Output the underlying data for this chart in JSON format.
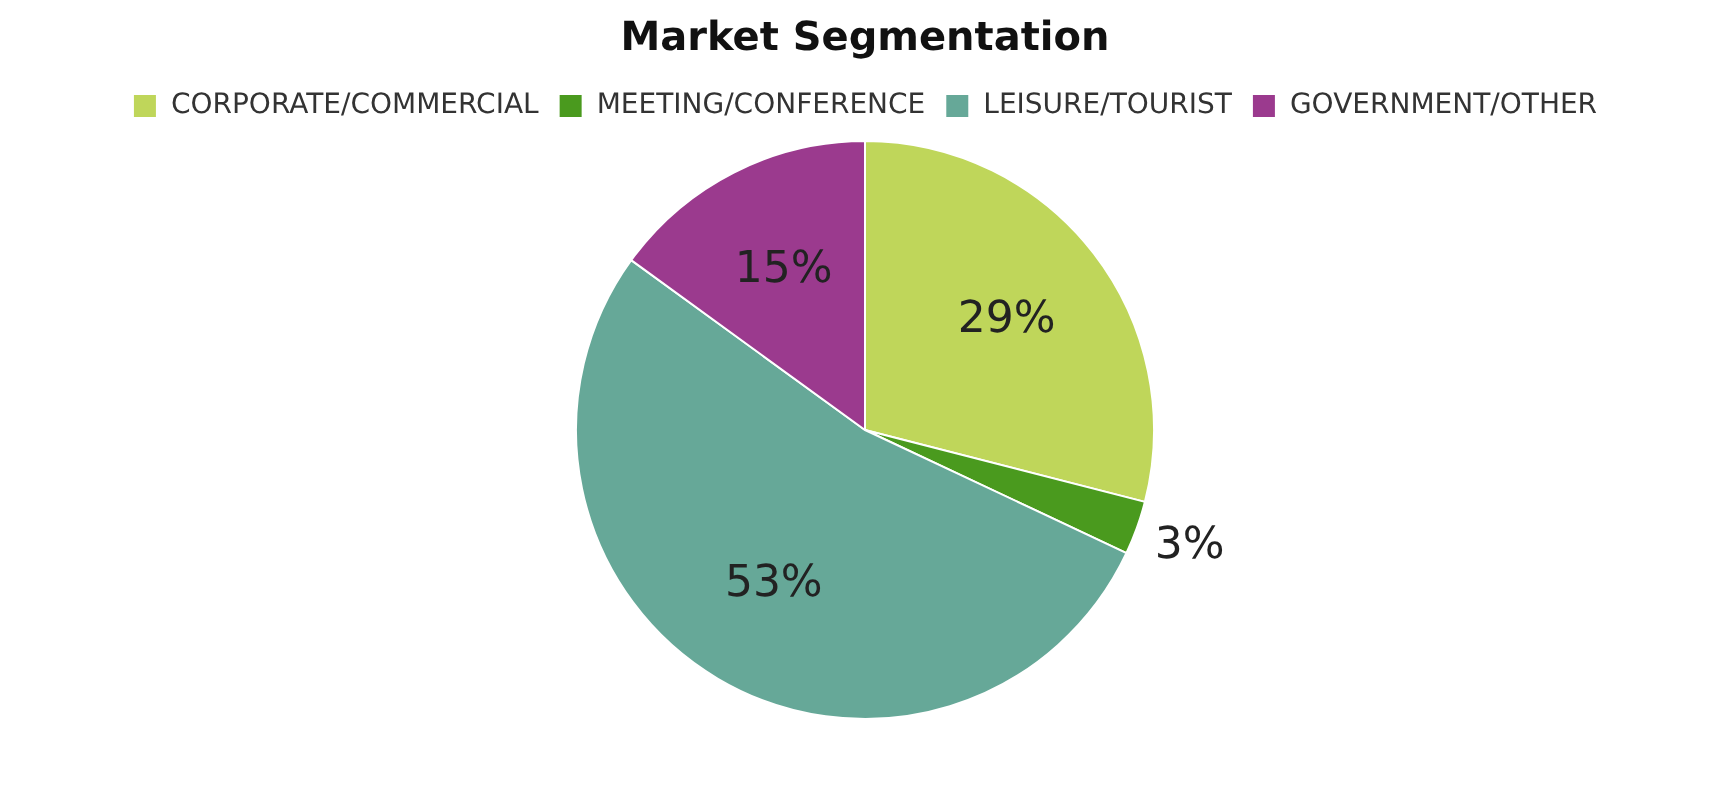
{
  "chart_data": {
    "type": "pie",
    "title": "Market Segmentation",
    "categories": [
      "CORPORATE/COMMERCIAL",
      "MEETING/CONFERENCE",
      "LEISURE/TOURIST",
      "GOVERNMENT/OTHER"
    ],
    "values": [
      29,
      3,
      53,
      15
    ],
    "colors": [
      "#bfd65a",
      "#4a9a1e",
      "#66a898",
      "#9b3a8e"
    ],
    "value_labels": [
      "29%",
      "3%",
      "53%",
      "15%"
    ],
    "legend": "top"
  }
}
